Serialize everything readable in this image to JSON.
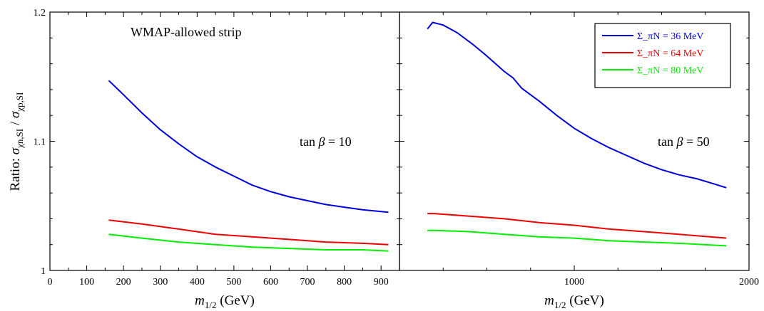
{
  "chart_data": [
    {
      "type": "line",
      "panel": "left",
      "xlabel": "m_{1/2} (GeV)",
      "ylabel": "Ratio: σ_{χn,SI} / σ_{χp,SI}",
      "xlim": [
        0,
        950
      ],
      "ylim": [
        1.0,
        1.2
      ],
      "x_ticks": [
        "0",
        "100",
        "200",
        "300",
        "400",
        "500",
        "600",
        "700",
        "800",
        "900"
      ],
      "y_ticks": [
        "1",
        "1.1",
        "1.2"
      ],
      "annotations": [
        "WMAP-allowed strip",
        "tan β = 10"
      ],
      "series": [
        {
          "name": "Σ_πN = 36 MeV",
          "color": "#0000dd",
          "x": [
            160,
            200,
            250,
            300,
            350,
            400,
            450,
            500,
            550,
            600,
            650,
            700,
            750,
            800,
            850,
            920
          ],
          "y": [
            1.147,
            1.136,
            1.122,
            1.109,
            1.098,
            1.088,
            1.08,
            1.073,
            1.066,
            1.061,
            1.057,
            1.054,
            1.051,
            1.049,
            1.047,
            1.045
          ]
        },
        {
          "name": "Σ_πN = 64 MeV",
          "color": "#ee0000",
          "x": [
            160,
            250,
            350,
            450,
            550,
            650,
            750,
            850,
            920
          ],
          "y": [
            1.039,
            1.036,
            1.032,
            1.028,
            1.026,
            1.024,
            1.022,
            1.021,
            1.02
          ]
        },
        {
          "name": "Σ_πN = 80 MeV",
          "color": "#00ee00",
          "x": [
            160,
            250,
            350,
            450,
            550,
            650,
            750,
            850,
            920
          ],
          "y": [
            1.028,
            1.025,
            1.022,
            1.02,
            1.018,
            1.017,
            1.016,
            1.016,
            1.015
          ]
        }
      ]
    },
    {
      "type": "line",
      "panel": "right",
      "xlabel": "m_{1/2} (GeV)",
      "xlim": [
        0,
        2000
      ],
      "ylim": [
        1.0,
        1.2
      ],
      "x_ticks": [
        "1000",
        "2000"
      ],
      "annotations": [
        "tan β = 50"
      ],
      "legend": {
        "placement": "top-right"
      },
      "series": [
        {
          "name": "Σ_πN = 36 MeV",
          "color": "#0000dd",
          "x": [
            160,
            190,
            250,
            330,
            420,
            500,
            600,
            650,
            700,
            800,
            900,
            1000,
            1100,
            1200,
            1300,
            1400,
            1500,
            1600,
            1700,
            1800,
            1870
          ],
          "y": [
            1.187,
            1.192,
            1.19,
            1.184,
            1.175,
            1.166,
            1.154,
            1.149,
            1.141,
            1.131,
            1.12,
            1.11,
            1.102,
            1.095,
            1.089,
            1.083,
            1.078,
            1.074,
            1.071,
            1.067,
            1.064
          ]
        },
        {
          "name": "Σ_πN = 64 MeV",
          "color": "#ee0000",
          "x": [
            160,
            200,
            400,
            600,
            800,
            1000,
            1200,
            1400,
            1600,
            1870
          ],
          "y": [
            1.044,
            1.044,
            1.042,
            1.04,
            1.037,
            1.035,
            1.032,
            1.03,
            1.028,
            1.025
          ]
        },
        {
          "name": "Σ_πN = 80 MeV",
          "color": "#00ee00",
          "x": [
            160,
            200,
            400,
            600,
            800,
            1000,
            1200,
            1400,
            1600,
            1870
          ],
          "y": [
            1.031,
            1.031,
            1.03,
            1.028,
            1.026,
            1.025,
            1.023,
            1.022,
            1.021,
            1.019
          ]
        }
      ]
    }
  ]
}
